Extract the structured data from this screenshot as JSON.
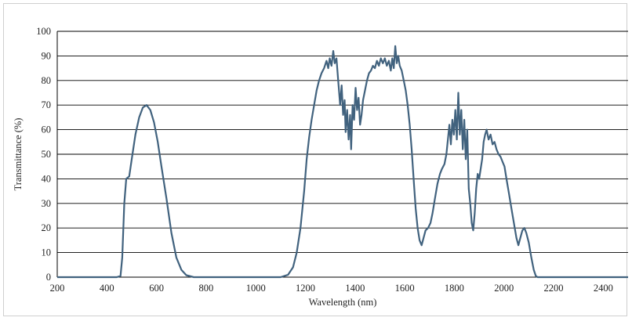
{
  "chart_data": {
    "type": "line",
    "title": "",
    "xlabel": "Wavelength (nm)",
    "ylabel": "Transmittance (%)",
    "xlim": [
      200,
      2500
    ],
    "ylim": [
      0,
      100
    ],
    "x_ticks": [
      "200",
      "400",
      "600",
      "800",
      "1000",
      "1200",
      "1400",
      "1600",
      "1800",
      "2000",
      "2200",
      "2400"
    ],
    "y_ticks": [
      "0",
      "10",
      "20",
      "30",
      "40",
      "50",
      "60",
      "70",
      "80",
      "90",
      "100"
    ],
    "grid": "horizontal",
    "legend": "none",
    "line_color": "#41627e",
    "series": [
      {
        "points": [
          [
            200,
            0
          ],
          [
            440,
            0
          ],
          [
            455,
            0.5
          ],
          [
            462,
            8
          ],
          [
            470,
            30
          ],
          [
            478,
            40
          ],
          [
            490,
            41
          ],
          [
            500,
            48
          ],
          [
            515,
            58
          ],
          [
            530,
            65
          ],
          [
            545,
            69
          ],
          [
            560,
            70
          ],
          [
            575,
            68
          ],
          [
            590,
            63
          ],
          [
            605,
            55
          ],
          [
            620,
            45
          ],
          [
            640,
            32
          ],
          [
            660,
            18
          ],
          [
            680,
            8
          ],
          [
            700,
            3
          ],
          [
            720,
            0.8
          ],
          [
            750,
            0
          ],
          [
            1100,
            0
          ],
          [
            1130,
            1
          ],
          [
            1150,
            4
          ],
          [
            1165,
            10
          ],
          [
            1180,
            20
          ],
          [
            1195,
            35
          ],
          [
            1205,
            48
          ],
          [
            1215,
            57
          ],
          [
            1225,
            64
          ],
          [
            1235,
            70
          ],
          [
            1245,
            76
          ],
          [
            1255,
            80
          ],
          [
            1265,
            83
          ],
          [
            1275,
            85
          ],
          [
            1285,
            88
          ],
          [
            1292,
            85
          ],
          [
            1298,
            89
          ],
          [
            1305,
            86
          ],
          [
            1312,
            92
          ],
          [
            1318,
            87
          ],
          [
            1325,
            89
          ],
          [
            1332,
            80
          ],
          [
            1340,
            70
          ],
          [
            1346,
            78
          ],
          [
            1352,
            66
          ],
          [
            1358,
            72
          ],
          [
            1362,
            59
          ],
          [
            1368,
            68
          ],
          [
            1374,
            56
          ],
          [
            1380,
            66
          ],
          [
            1384,
            52
          ],
          [
            1390,
            70
          ],
          [
            1396,
            64
          ],
          [
            1402,
            77
          ],
          [
            1408,
            68
          ],
          [
            1414,
            73
          ],
          [
            1420,
            62
          ],
          [
            1426,
            66
          ],
          [
            1432,
            72
          ],
          [
            1440,
            76
          ],
          [
            1448,
            80
          ],
          [
            1456,
            83
          ],
          [
            1464,
            84
          ],
          [
            1472,
            86
          ],
          [
            1480,
            85
          ],
          [
            1488,
            88
          ],
          [
            1496,
            86
          ],
          [
            1504,
            89
          ],
          [
            1512,
            87
          ],
          [
            1520,
            89
          ],
          [
            1528,
            86
          ],
          [
            1536,
            88
          ],
          [
            1544,
            84
          ],
          [
            1550,
            89
          ],
          [
            1556,
            85
          ],
          [
            1562,
            94
          ],
          [
            1568,
            87
          ],
          [
            1574,
            90
          ],
          [
            1580,
            86
          ],
          [
            1588,
            84
          ],
          [
            1596,
            80
          ],
          [
            1604,
            76
          ],
          [
            1612,
            70
          ],
          [
            1620,
            62
          ],
          [
            1628,
            52
          ],
          [
            1636,
            40
          ],
          [
            1644,
            28
          ],
          [
            1652,
            20
          ],
          [
            1660,
            15
          ],
          [
            1668,
            13
          ],
          [
            1676,
            16
          ],
          [
            1684,
            19
          ],
          [
            1694,
            20
          ],
          [
            1704,
            22
          ],
          [
            1712,
            26
          ],
          [
            1722,
            32
          ],
          [
            1732,
            38
          ],
          [
            1742,
            42
          ],
          [
            1750,
            44
          ],
          [
            1760,
            46
          ],
          [
            1768,
            50
          ],
          [
            1774,
            56
          ],
          [
            1780,
            62
          ],
          [
            1786,
            54
          ],
          [
            1792,
            64
          ],
          [
            1798,
            58
          ],
          [
            1804,
            68
          ],
          [
            1810,
            56
          ],
          [
            1816,
            75
          ],
          [
            1822,
            58
          ],
          [
            1828,
            68
          ],
          [
            1834,
            52
          ],
          [
            1840,
            64
          ],
          [
            1846,
            48
          ],
          [
            1852,
            60
          ],
          [
            1858,
            36
          ],
          [
            1864,
            30
          ],
          [
            1870,
            22
          ],
          [
            1876,
            19
          ],
          [
            1882,
            26
          ],
          [
            1888,
            36
          ],
          [
            1894,
            42
          ],
          [
            1900,
            40
          ],
          [
            1906,
            44
          ],
          [
            1912,
            48
          ],
          [
            1918,
            55
          ],
          [
            1924,
            58
          ],
          [
            1930,
            60
          ],
          [
            1938,
            56
          ],
          [
            1946,
            58
          ],
          [
            1954,
            54
          ],
          [
            1962,
            55
          ],
          [
            1970,
            52
          ],
          [
            1978,
            50
          ],
          [
            1986,
            49
          ],
          [
            1994,
            47
          ],
          [
            2002,
            45
          ],
          [
            2010,
            40
          ],
          [
            2020,
            34
          ],
          [
            2030,
            28
          ],
          [
            2040,
            22
          ],
          [
            2050,
            16
          ],
          [
            2058,
            13
          ],
          [
            2066,
            16
          ],
          [
            2074,
            19
          ],
          [
            2082,
            20
          ],
          [
            2090,
            18
          ],
          [
            2100,
            14
          ],
          [
            2110,
            8
          ],
          [
            2120,
            3
          ],
          [
            2128,
            0.5
          ],
          [
            2135,
            0
          ],
          [
            2500,
            0
          ]
        ]
      }
    ]
  }
}
